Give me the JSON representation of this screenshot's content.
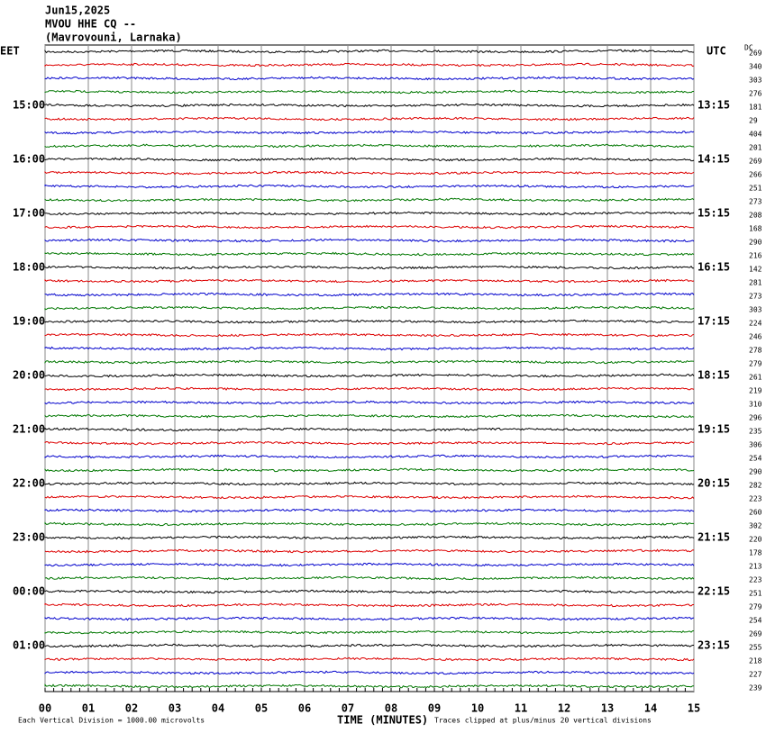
{
  "header": {
    "lines": [
      "Jun15,2025",
      "MVOU HHE CQ --",
      "(Mavrovouni, Larnaka)"
    ]
  },
  "left_labels": [
    "EET",
    "15:00",
    "16:00",
    "17:00",
    "18:00",
    "19:00",
    "20:00",
    "21:00",
    "22:00",
    "23:00",
    "00:00",
    "01:00"
  ],
  "right_labels": [
    "UTC",
    "13:15",
    "14:15",
    "15:15",
    "16:15",
    "17:15",
    "18:15",
    "19:15",
    "20:15",
    "21:15",
    "22:15",
    "23:15"
  ],
  "dc_header": "DC",
  "dc_values": [
    269,
    340,
    303,
    276,
    181,
    29,
    404,
    201,
    269,
    266,
    251,
    273,
    208,
    168,
    290,
    216,
    142,
    281,
    273,
    303,
    224,
    246,
    278,
    279,
    261,
    219,
    310,
    296,
    235,
    306,
    254,
    290,
    282,
    223,
    260,
    302,
    220,
    178,
    213,
    223,
    251,
    279,
    254,
    269,
    255,
    218,
    227,
    239
  ],
  "x_ticks": [
    "00",
    "01",
    "02",
    "03",
    "04",
    "05",
    "06",
    "07",
    "08",
    "09",
    "10",
    "11",
    "12",
    "13",
    "14",
    "15"
  ],
  "footer": {
    "scale": "Each Vertical Division = 1000.00 microvolts",
    "axis_title": "TIME (MINUTES)",
    "clip_note": "Traces clipped at plus/minus 20 vertical divisions"
  }
}
